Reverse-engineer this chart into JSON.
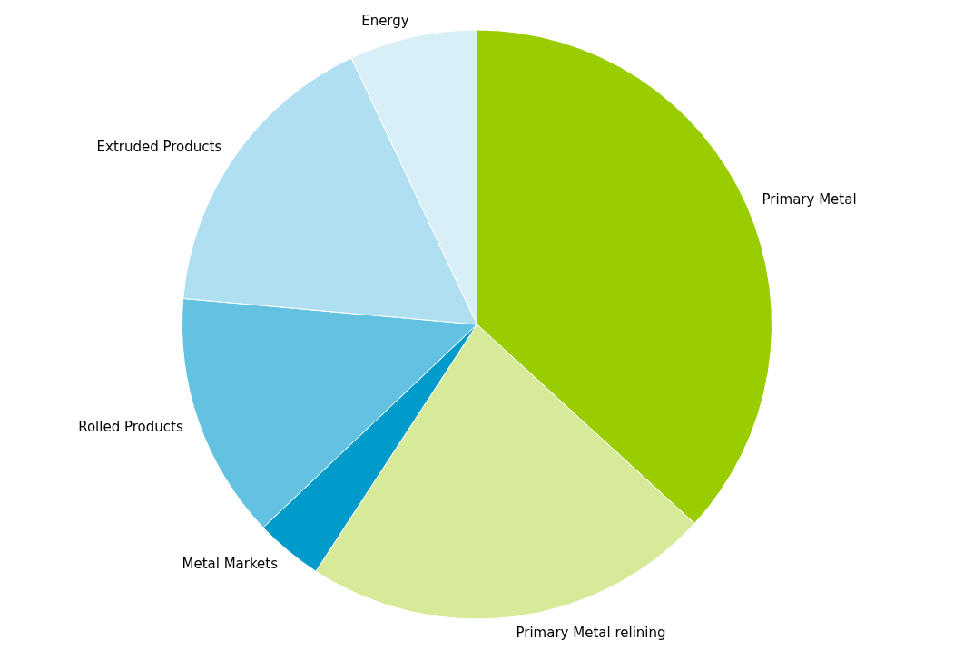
{
  "chart_data": {
    "type": "pie",
    "categories": [
      "Primary Metal",
      "Primary Metal relining",
      "Metal Markets",
      "Rolled Products",
      "Extruded Products",
      "Energy"
    ],
    "values": [
      36.8,
      22.4,
      3.7,
      13.5,
      16.6,
      7.0
    ],
    "colors": [
      "#9acd00",
      "#d6ea9a",
      "#009bcb",
      "#63c2e2",
      "#afdff0",
      "#d9eff7"
    ]
  }
}
